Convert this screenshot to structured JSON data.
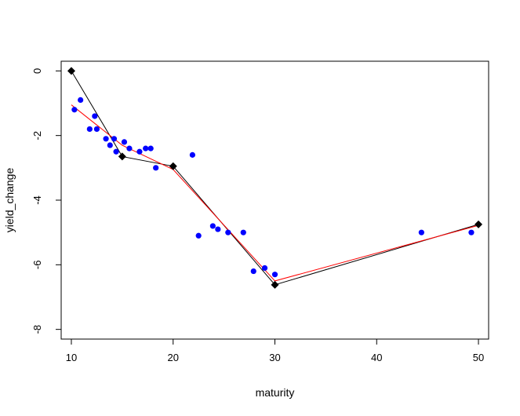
{
  "chart_data": {
    "type": "scatter",
    "title": "",
    "xlabel": "maturity",
    "ylabel": "yield_change",
    "xlim": [
      9,
      51
    ],
    "ylim": [
      -8.3,
      0.3
    ],
    "x_ticks": [
      10,
      20,
      30,
      40,
      50
    ],
    "y_ticks": [
      0,
      -2,
      -4,
      -6,
      -8
    ],
    "grid": false,
    "series": [
      {
        "kind": "points",
        "color": "#0000ff",
        "x": [
          10.3,
          10.9,
          11.8,
          12.3,
          12.5,
          13.4,
          13.8,
          14.2,
          14.4,
          15.2,
          15.7,
          16.7,
          17.3,
          17.8,
          18.3,
          21.9,
          22.5,
          23.9,
          24.4,
          25.4,
          26.9,
          27.9,
          29.0,
          30.0,
          44.4,
          49.3
        ],
        "y": [
          -1.2,
          -0.9,
          -1.8,
          -1.4,
          -1.8,
          -2.1,
          -2.3,
          -2.1,
          -2.5,
          -2.2,
          -2.4,
          -2.5,
          -2.4,
          -2.4,
          -3.0,
          -2.6,
          -5.1,
          -4.8,
          -4.9,
          -5.0,
          -5.0,
          -6.2,
          -6.1,
          -6.3,
          -5.0,
          -5.0
        ]
      },
      {
        "kind": "line-with-knots",
        "color": "#000000",
        "x": [
          10,
          15,
          20,
          30,
          50
        ],
        "y": [
          0,
          -2.65,
          -2.95,
          -6.62,
          -4.75
        ]
      },
      {
        "kind": "line",
        "color": "#ff0000",
        "x": [
          10,
          15,
          20,
          30,
          50
        ],
        "y": [
          -1.05,
          -2.3,
          -3.05,
          -6.5,
          -4.78
        ]
      }
    ]
  }
}
